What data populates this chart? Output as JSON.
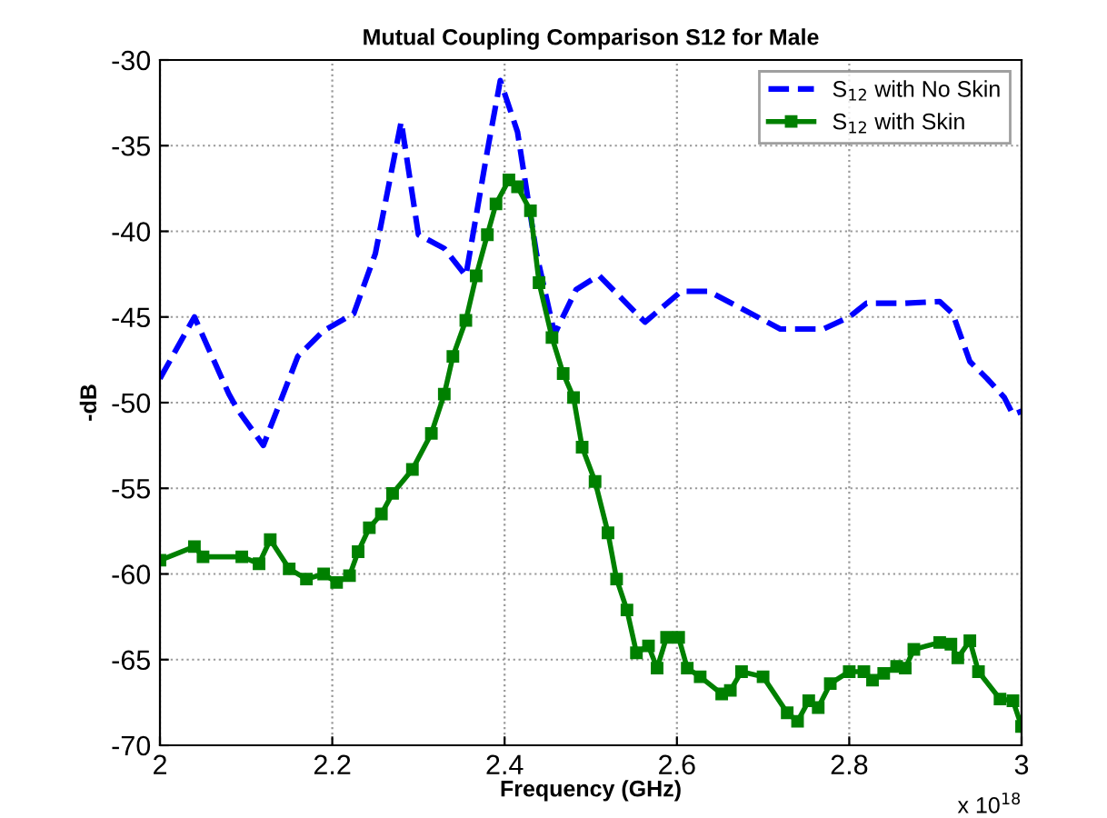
{
  "chart_data": {
    "type": "line",
    "title": "Mutual Coupling Comparison S12 for Male",
    "xlabel": "Frequency (GHz)",
    "ylabel": "-dB",
    "annotations": [
      "x 10$^{18}$"
    ],
    "xlim": [
      2,
      3
    ],
    "xticks": [
      2,
      2.2,
      2.4,
      2.6,
      2.8,
      3
    ],
    "ylim": [
      -70,
      -30
    ],
    "yticks": [
      -70,
      -65,
      -60,
      -55,
      -50,
      -45,
      -40,
      -35,
      -30
    ],
    "grid": true,
    "legend": "top right",
    "series": [
      {
        "name": "S$_{12}$ with No Skin",
        "color": "#0000ff",
        "line_style": "dashed",
        "marker": "none",
        "x": [
          2.0,
          2.04,
          2.08,
          2.09,
          2.12,
          2.16,
          2.19,
          2.225,
          2.25,
          2.28,
          2.3,
          2.33,
          2.355,
          2.38,
          2.395,
          2.415,
          2.437,
          2.458,
          2.483,
          2.505,
          2.51,
          2.563,
          2.605,
          2.637,
          2.72,
          2.77,
          2.8,
          2.82,
          2.863,
          2.905,
          2.92,
          2.94,
          2.96,
          2.98,
          2.99,
          3.0
        ],
        "values": [
          -48.6,
          -45,
          -49.5,
          -50.4,
          -52.5,
          -47.3,
          -45.8,
          -44.8,
          -41.3,
          -33.6,
          -40.2,
          -41,
          -42.6,
          -35.3,
          -31.2,
          -34.2,
          -41.3,
          -46,
          -43.4,
          -42.7,
          -42.6,
          -45.3,
          -43.5,
          -43.5,
          -45.7,
          -45.7,
          -45,
          -44.2,
          -44.2,
          -44.1,
          -44.8,
          -47.6,
          -48.6,
          -49.7,
          -50.7,
          -50.5
        ]
      },
      {
        "name": "S$_{12}$ with Skin",
        "color": "#008000",
        "line_style": "solid",
        "marker": "square",
        "x": [
          2.0,
          2.04,
          2.05,
          2.095,
          2.115,
          2.128,
          2.15,
          2.17,
          2.19,
          2.205,
          2.22,
          2.23,
          2.243,
          2.257,
          2.27,
          2.293,
          2.315,
          2.33,
          2.34,
          2.355,
          2.367,
          2.38,
          2.39,
          2.405,
          2.415,
          2.43,
          2.44,
          2.455,
          2.468,
          2.48,
          2.49,
          2.505,
          2.52,
          2.53,
          2.542,
          2.553,
          2.567,
          2.577,
          2.588,
          2.602,
          2.612,
          2.627,
          2.652,
          2.662,
          2.675,
          2.7,
          2.728,
          2.74,
          2.753,
          2.764,
          2.778,
          2.8,
          2.817,
          2.827,
          2.84,
          2.855,
          2.865,
          2.875,
          2.905,
          2.918,
          2.926,
          2.94,
          2.95,
          2.975,
          2.99,
          3.0
        ],
        "values": [
          -59.2,
          -58.4,
          -59,
          -59,
          -59.4,
          -58,
          -59.7,
          -60.3,
          -60,
          -60.5,
          -60.1,
          -58.7,
          -57.3,
          -56.5,
          -55.3,
          -53.9,
          -51.8,
          -49.5,
          -47.3,
          -45.2,
          -42.6,
          -40.2,
          -38.4,
          -37,
          -37.4,
          -38.8,
          -43,
          -46.2,
          -48.3,
          -49.7,
          -52.6,
          -54.6,
          -57.6,
          -60.3,
          -62.1,
          -64.6,
          -64.2,
          -65.5,
          -63.7,
          -63.7,
          -65.5,
          -66,
          -67,
          -66.8,
          -65.7,
          -66,
          -68.1,
          -68.6,
          -67.4,
          -67.8,
          -66.4,
          -65.7,
          -65.7,
          -66.2,
          -65.8,
          -65.4,
          -65.5,
          -64.4,
          -64,
          -64.1,
          -64.9,
          -63.9,
          -65.7,
          -67.3,
          -67.4,
          -68.9
        ]
      }
    ]
  }
}
